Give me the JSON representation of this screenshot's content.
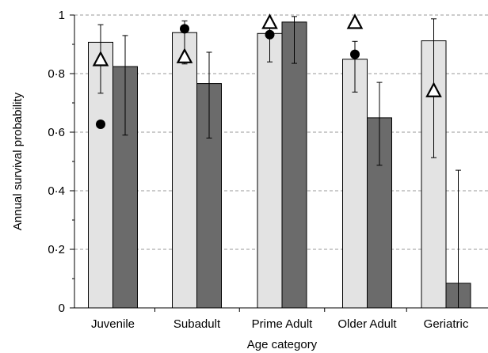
{
  "chart_data": {
    "type": "bar",
    "xlabel": "Age category",
    "ylabel": "Annual survival probability",
    "ylim": [
      0,
      1
    ],
    "yticks": [
      0,
      0.2,
      0.4,
      0.6,
      0.8,
      1
    ],
    "ytick_labels": [
      "0",
      "0·2",
      "0·4",
      "0·6",
      "0·8",
      "1"
    ],
    "grid": "horizontal dashed",
    "categories": [
      "Juvenile",
      "Subadult",
      "Prime Adult",
      "Older Adult",
      "Geriatric"
    ],
    "series": [
      {
        "color": "#e3e3e3",
        "values": [
          0.907,
          0.94,
          0.937,
          0.849,
          0.912
        ],
        "err_low": [
          0.733,
          0.833,
          0.84,
          0.737,
          0.513
        ],
        "err_high": [
          0.967,
          0.98,
          0.98,
          0.91,
          0.987
        ]
      },
      {
        "color": "#6b6b6b",
        "values": [
          0.824,
          0.766,
          0.976,
          0.649,
          0.084
        ],
        "err_low": [
          0.59,
          0.58,
          0.835,
          0.487,
          0.0
        ],
        "err_high": [
          0.93,
          0.873,
          0.995,
          0.77,
          0.47
        ]
      }
    ],
    "markers": {
      "circle": [
        0.627,
        0.953,
        0.933,
        0.866,
        null
      ],
      "triangle": [
        0.85,
        0.86,
        0.977,
        0.977,
        0.744
      ]
    }
  }
}
